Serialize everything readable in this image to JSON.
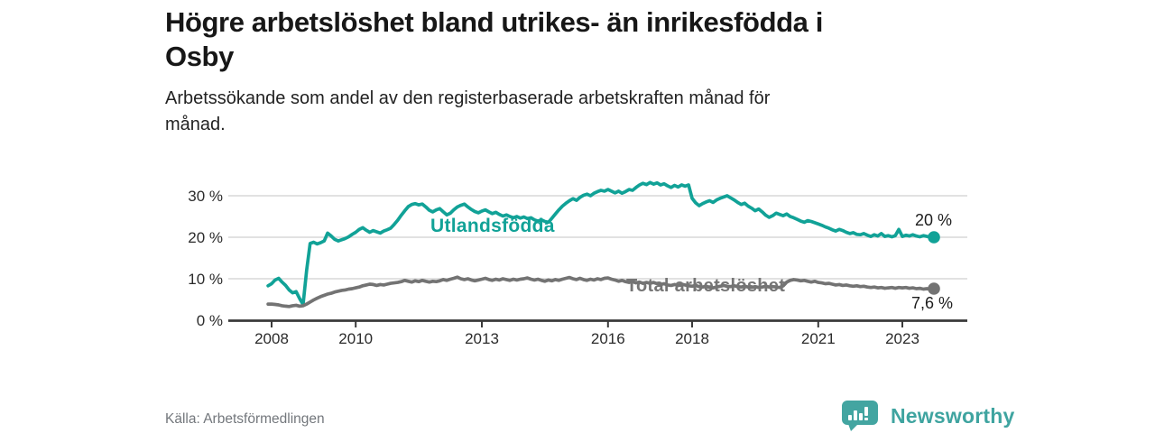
{
  "header": {
    "title_lines": [
      "Högre arbetslöshet bland utrikes- än inrikesfödda i",
      "Osby"
    ],
    "subtitle_lines": [
      "Arbetssökande som andel av den registerbaserade arbetskraften månad för",
      "månad."
    ]
  },
  "chart_data": {
    "type": "line",
    "title": "Högre arbetslöshet bland utrikes- än inrikesfödda i Osby",
    "subtitle": "Arbetssökande som andel av den registerbaserade arbetskraften månad för månad.",
    "unit": "%",
    "frequency": "monthly",
    "x_start": {
      "year": 2007,
      "month": 12
    },
    "x_end": {
      "year": 2023,
      "month": 10
    },
    "ylim": [
      0,
      35
    ],
    "grid": "horizontal",
    "ytick_values": [
      0,
      10,
      20,
      30
    ],
    "ytick_labels": [
      "0 %",
      "10 %",
      "20 %",
      "30 %"
    ],
    "xticks": [
      2008,
      2010,
      2013,
      2016,
      2018,
      2021,
      2023
    ],
    "xtick_labels": [
      "2008",
      "2010",
      "2013",
      "2016",
      "2018",
      "2021",
      "2023"
    ],
    "axis_color": "#3a3a3a",
    "grid_color": "#d8d8d8",
    "series": [
      {
        "name": "Utlandsfödda",
        "color": "#11a297",
        "end_value": 20.0,
        "end_label": "20 %",
        "values": [
          8.3,
          8.8,
          9.7,
          10.1,
          9.2,
          8.4,
          7.3,
          6.6,
          6.9,
          5.2,
          3.8,
          12.0,
          18.5,
          18.8,
          18.4,
          18.7,
          19.1,
          21.0,
          20.3,
          19.5,
          19.1,
          19.4,
          19.7,
          20.1,
          20.7,
          21.2,
          21.9,
          22.3,
          21.7,
          21.2,
          21.6,
          21.3,
          21.0,
          21.5,
          21.8,
          22.2,
          23.1,
          24.1,
          25.3,
          26.4,
          27.4,
          27.9,
          28.1,
          27.8,
          28.0,
          27.3,
          26.5,
          26.1,
          26.6,
          26.9,
          26.1,
          25.4,
          25.8,
          26.6,
          27.3,
          27.7,
          28.0,
          27.3,
          26.7,
          26.2,
          25.9,
          26.3,
          26.6,
          26.1,
          25.7,
          26.0,
          25.5,
          25.1,
          25.4,
          25.0,
          24.7,
          25.0,
          24.6,
          24.9,
          24.5,
          24.7,
          24.2,
          23.9,
          24.2,
          23.8,
          23.6,
          24.6,
          25.6,
          26.6,
          27.5,
          28.2,
          28.8,
          29.3,
          28.9,
          29.6,
          30.1,
          30.4,
          30.0,
          30.6,
          31.0,
          31.3,
          31.1,
          31.5,
          31.1,
          30.7,
          31.1,
          30.6,
          31.0,
          31.5,
          31.3,
          32.0,
          32.6,
          33.0,
          32.7,
          33.2,
          32.8,
          33.1,
          32.6,
          32.9,
          32.4,
          32.0,
          32.5,
          32.1,
          32.6,
          32.3,
          32.6,
          29.4,
          28.3,
          27.6,
          28.1,
          28.5,
          28.8,
          28.4,
          29.0,
          29.4,
          29.7,
          30.0,
          29.5,
          29.0,
          28.4,
          27.9,
          28.2,
          27.5,
          27.0,
          26.4,
          26.8,
          26.1,
          25.3,
          24.8,
          25.2,
          25.8,
          25.5,
          25.2,
          25.6,
          25.0,
          24.7,
          24.3,
          23.9,
          23.6,
          24.0,
          23.8,
          23.5,
          23.2,
          22.9,
          22.5,
          22.2,
          21.8,
          21.5,
          21.9,
          21.6,
          21.2,
          20.9,
          21.1,
          20.7,
          20.6,
          20.9,
          20.5,
          20.2,
          20.6,
          20.3,
          20.9,
          20.2,
          20.4,
          20.1,
          20.4,
          21.9,
          20.2,
          20.5,
          20.3,
          20.6,
          20.3,
          20.1,
          20.4,
          20.2,
          20.1,
          20.0
        ]
      },
      {
        "name": "Total arbetslöshet",
        "color": "#737373",
        "end_value": 7.6,
        "end_label": "7,6 %",
        "values": [
          3.9,
          3.9,
          3.8,
          3.7,
          3.5,
          3.4,
          3.3,
          3.5,
          3.6,
          3.4,
          3.5,
          3.9,
          4.4,
          4.9,
          5.3,
          5.7,
          6.0,
          6.3,
          6.5,
          6.8,
          7.0,
          7.2,
          7.3,
          7.5,
          7.6,
          7.8,
          8.0,
          8.3,
          8.5,
          8.7,
          8.6,
          8.4,
          8.6,
          8.5,
          8.7,
          8.9,
          9.0,
          9.1,
          9.3,
          9.6,
          9.4,
          9.2,
          9.5,
          9.3,
          9.6,
          9.4,
          9.2,
          9.4,
          9.3,
          9.5,
          9.8,
          9.6,
          9.9,
          10.1,
          10.4,
          10.0,
          9.8,
          10.0,
          9.7,
          9.5,
          9.7,
          9.9,
          10.1,
          9.8,
          9.6,
          9.9,
          9.7,
          10.0,
          9.8,
          9.6,
          9.9,
          9.7,
          9.9,
          10.0,
          10.2,
          9.9,
          9.7,
          9.9,
          9.6,
          9.4,
          9.7,
          9.5,
          9.8,
          9.6,
          9.9,
          10.1,
          10.3,
          10.0,
          9.8,
          10.1,
          9.8,
          9.6,
          9.9,
          9.7,
          10.0,
          9.8,
          10.1,
          10.2,
          9.9,
          9.7,
          9.4,
          9.6,
          9.3,
          9.1,
          9.3,
          9.0,
          9.2,
          8.9,
          9.1,
          8.9,
          9.1,
          8.8,
          8.6,
          8.8,
          8.5,
          8.4,
          8.6,
          8.4,
          8.7,
          8.5,
          8.3,
          8.2,
          8.4,
          8.1,
          8.0,
          8.2,
          7.9,
          7.8,
          8.0,
          8.2,
          8.4,
          8.2,
          8.1,
          8.3,
          8.1,
          8.0,
          8.2,
          8.0,
          7.9,
          8.1,
          7.9,
          8.0,
          8.2,
          8.0,
          8.1,
          8.0,
          7.9,
          8.3,
          9.2,
          9.6,
          9.8,
          9.7,
          9.5,
          9.6,
          9.4,
          9.2,
          9.4,
          9.1,
          9.0,
          8.8,
          8.9,
          8.7,
          8.5,
          8.6,
          8.4,
          8.5,
          8.3,
          8.2,
          8.3,
          8.1,
          8.2,
          8.0,
          7.9,
          8.0,
          7.8,
          7.9,
          7.7,
          7.8,
          7.9,
          7.7,
          7.9,
          7.8,
          7.9,
          7.7,
          7.8,
          7.6,
          7.7,
          7.5,
          7.6,
          7.5,
          7.6
        ]
      }
    ]
  },
  "footer": {
    "source": "Källa: Arbetsförmedlingen",
    "brand_name": "Newsworthy"
  },
  "colors": {
    "foreign_line": "#11a297",
    "total_line": "#737373",
    "brand_teal": "#3fa4a0"
  }
}
